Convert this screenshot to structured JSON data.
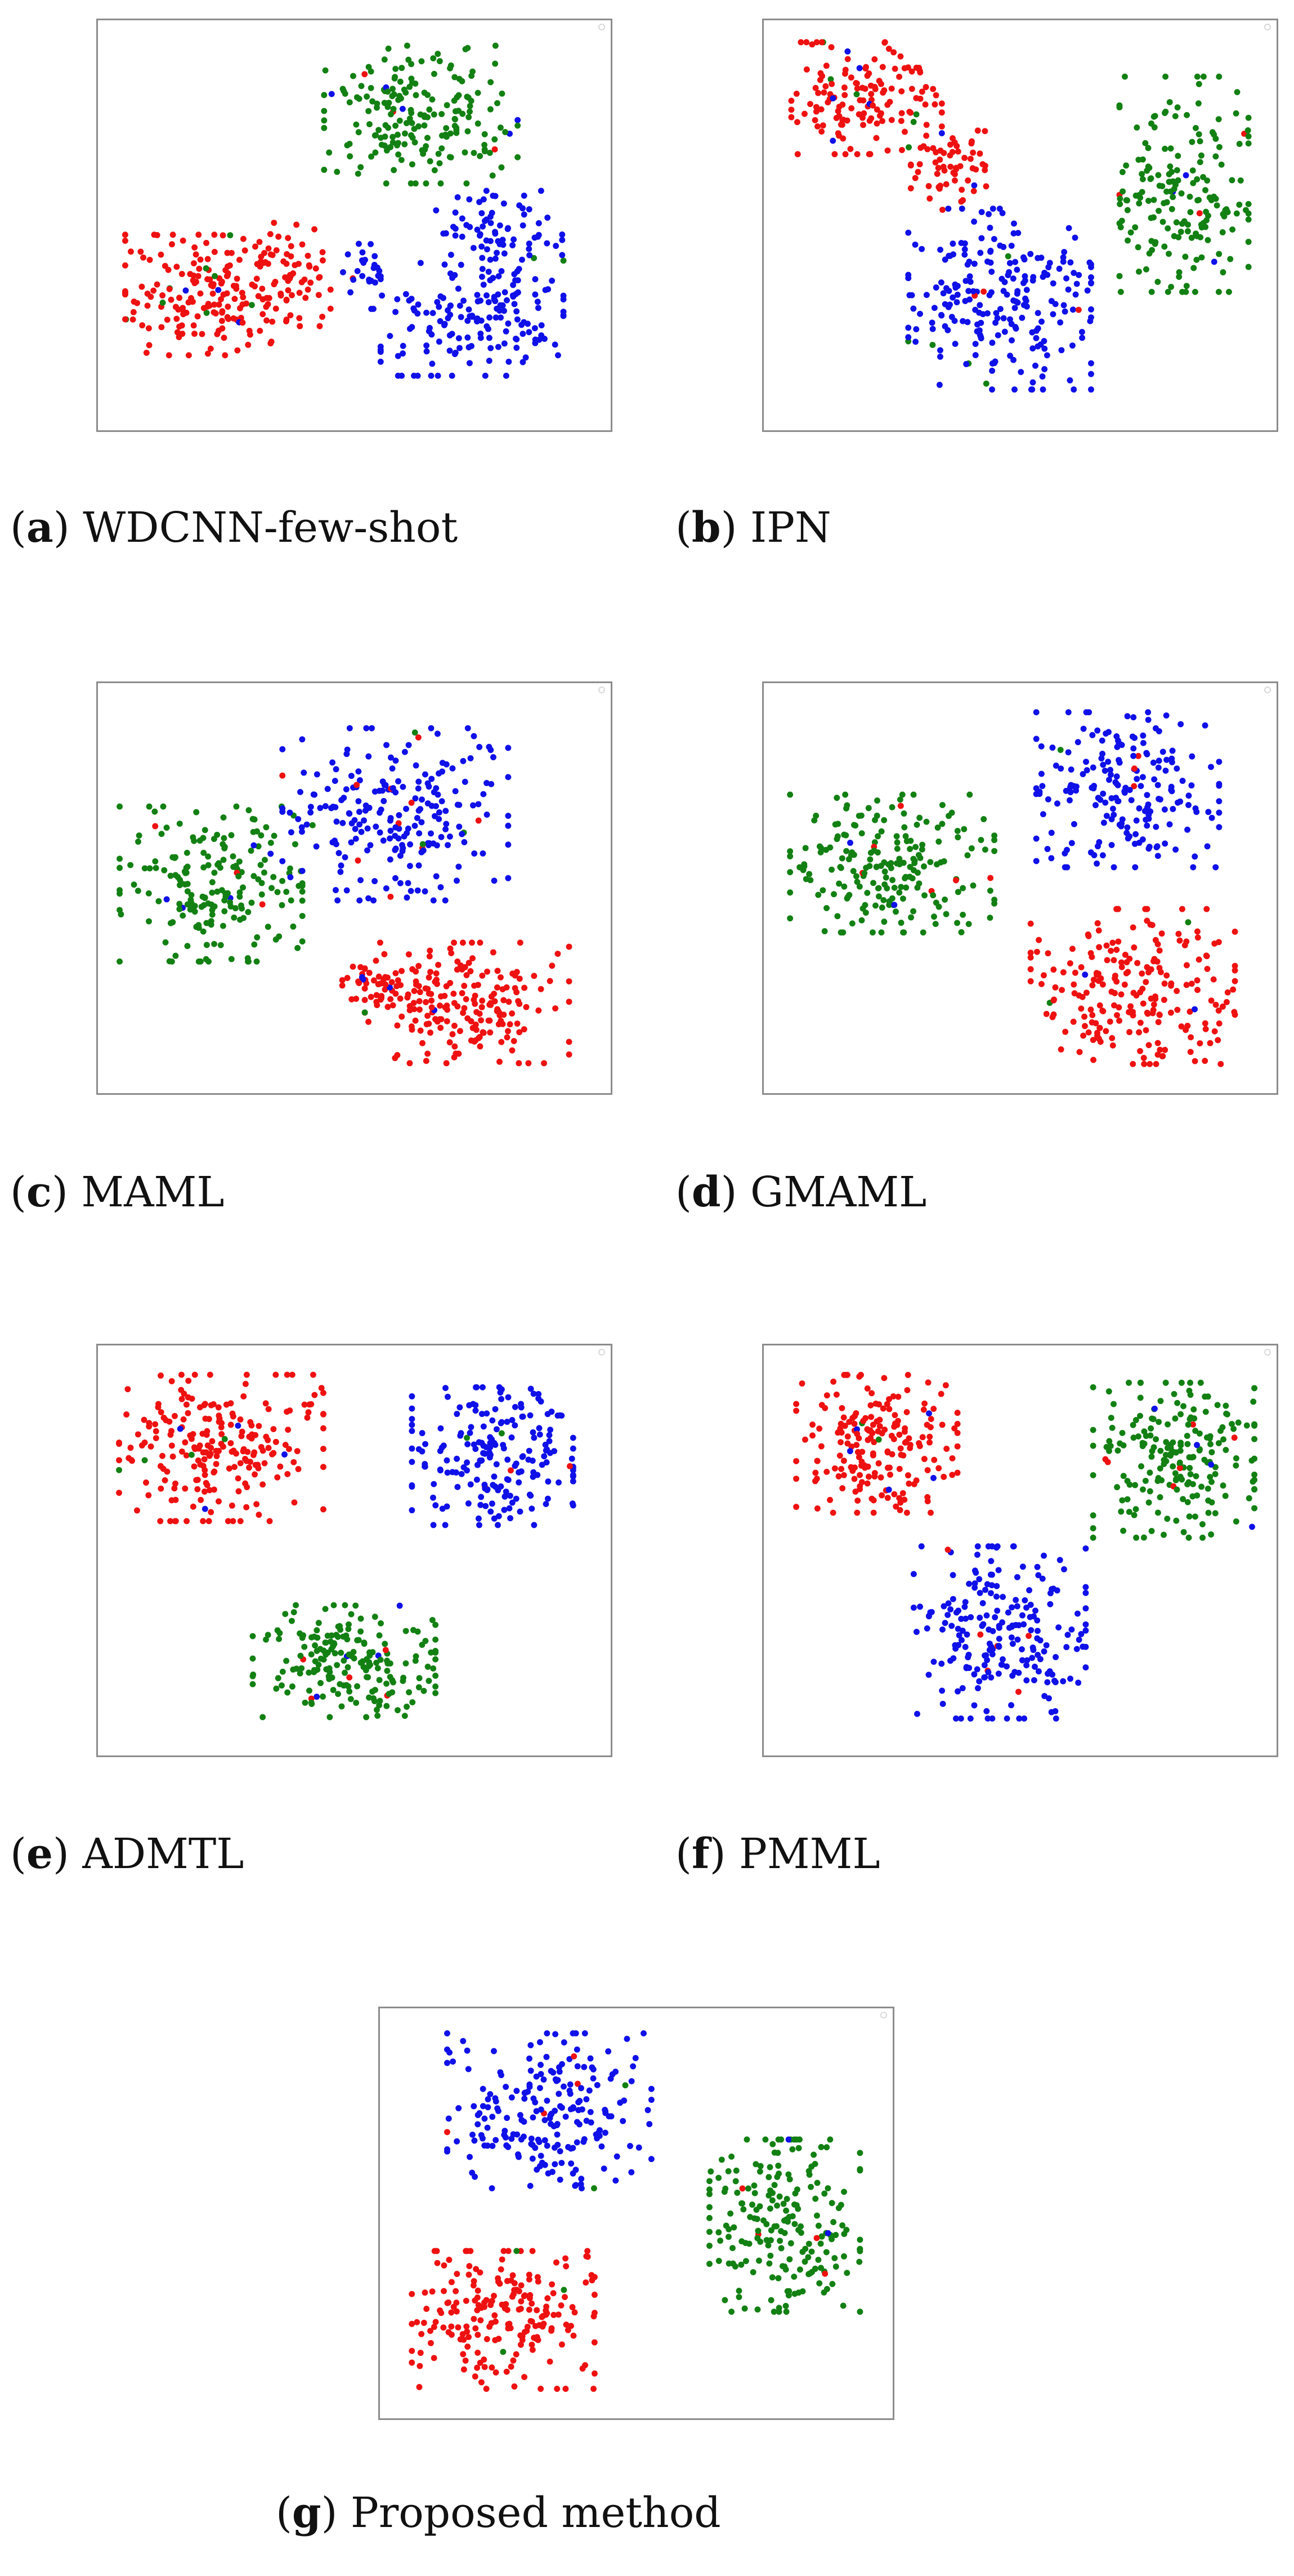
{
  "colors": {
    "red": "#ee1111",
    "green": "#138013",
    "blue": "#1010e8"
  },
  "chart_data": [
    {
      "type": "scatter",
      "id": "a",
      "letter": "a",
      "caption": "WDCNN-few-shot",
      "clusters": [
        {
          "color": "red",
          "cx": 0.21,
          "cy": 0.67,
          "rx": 0.15,
          "ry": 0.14,
          "n": 180
        },
        {
          "color": "red",
          "cx": 0.38,
          "cy": 0.62,
          "rx": 0.07,
          "ry": 0.12,
          "n": 60
        },
        {
          "color": "green",
          "cx": 0.63,
          "cy": 0.23,
          "rx": 0.18,
          "ry": 0.16,
          "n": 200
        },
        {
          "color": "blue",
          "cx": 0.73,
          "cy": 0.72,
          "rx": 0.17,
          "ry": 0.14,
          "n": 170
        },
        {
          "color": "blue",
          "cx": 0.78,
          "cy": 0.5,
          "rx": 0.12,
          "ry": 0.08,
          "n": 70
        },
        {
          "color": "blue",
          "cx": 0.52,
          "cy": 0.62,
          "rx": 0.04,
          "ry": 0.08,
          "n": 25
        }
      ]
    },
    {
      "type": "scatter",
      "id": "b",
      "letter": "b",
      "caption": "IPN",
      "clusters": [
        {
          "color": "red",
          "cx": 0.2,
          "cy": 0.19,
          "rx": 0.14,
          "ry": 0.13,
          "n": 150
        },
        {
          "color": "red",
          "cx": 0.36,
          "cy": 0.36,
          "rx": 0.07,
          "ry": 0.1,
          "n": 60
        },
        {
          "color": "blue",
          "cx": 0.46,
          "cy": 0.68,
          "rx": 0.17,
          "ry": 0.21,
          "n": 230
        },
        {
          "color": "green",
          "cx": 0.82,
          "cy": 0.4,
          "rx": 0.12,
          "ry": 0.25,
          "n": 190
        }
      ]
    },
    {
      "type": "scatter",
      "id": "c",
      "letter": "c",
      "caption": "MAML",
      "clusters": [
        {
          "color": "green",
          "cx": 0.22,
          "cy": 0.49,
          "rx": 0.17,
          "ry": 0.18,
          "n": 200
        },
        {
          "color": "blue",
          "cx": 0.58,
          "cy": 0.32,
          "rx": 0.21,
          "ry": 0.2,
          "n": 230
        },
        {
          "color": "red",
          "cx": 0.72,
          "cy": 0.78,
          "rx": 0.19,
          "ry": 0.14,
          "n": 200
        },
        {
          "color": "red",
          "cx": 0.55,
          "cy": 0.74,
          "rx": 0.07,
          "ry": 0.06,
          "n": 40
        }
      ]
    },
    {
      "type": "scatter",
      "id": "d",
      "letter": "d",
      "caption": "GMAML",
      "clusters": [
        {
          "color": "green",
          "cx": 0.25,
          "cy": 0.44,
          "rx": 0.19,
          "ry": 0.16,
          "n": 210
        },
        {
          "color": "blue",
          "cx": 0.71,
          "cy": 0.26,
          "rx": 0.17,
          "ry": 0.18,
          "n": 200
        },
        {
          "color": "red",
          "cx": 0.72,
          "cy": 0.74,
          "rx": 0.19,
          "ry": 0.18,
          "n": 220
        }
      ]
    },
    {
      "type": "scatter",
      "id": "e",
      "letter": "e",
      "caption": "ADMTL",
      "clusters": [
        {
          "color": "red",
          "cx": 0.24,
          "cy": 0.25,
          "rx": 0.19,
          "ry": 0.17,
          "n": 230
        },
        {
          "color": "blue",
          "cx": 0.77,
          "cy": 0.27,
          "rx": 0.15,
          "ry": 0.16,
          "n": 200
        },
        {
          "color": "green",
          "cx": 0.48,
          "cy": 0.77,
          "rx": 0.17,
          "ry": 0.13,
          "n": 200
        }
      ]
    },
    {
      "type": "scatter",
      "id": "f",
      "letter": "f",
      "caption": "PMML",
      "clusters": [
        {
          "color": "red",
          "cx": 0.22,
          "cy": 0.24,
          "rx": 0.15,
          "ry": 0.16,
          "n": 200
        },
        {
          "color": "green",
          "cx": 0.8,
          "cy": 0.28,
          "rx": 0.15,
          "ry": 0.18,
          "n": 210
        },
        {
          "color": "blue",
          "cx": 0.46,
          "cy": 0.7,
          "rx": 0.16,
          "ry": 0.2,
          "n": 220
        }
      ]
    },
    {
      "type": "scatter",
      "id": "g",
      "letter": "g",
      "caption": "Proposed method",
      "clusters": [
        {
          "color": "blue",
          "cx": 0.33,
          "cy": 0.25,
          "rx": 0.19,
          "ry": 0.18,
          "n": 220
        },
        {
          "color": "green",
          "cx": 0.79,
          "cy": 0.53,
          "rx": 0.14,
          "ry": 0.2,
          "n": 210
        },
        {
          "color": "red",
          "cx": 0.24,
          "cy": 0.76,
          "rx": 0.17,
          "ry": 0.16,
          "n": 210
        }
      ]
    }
  ]
}
